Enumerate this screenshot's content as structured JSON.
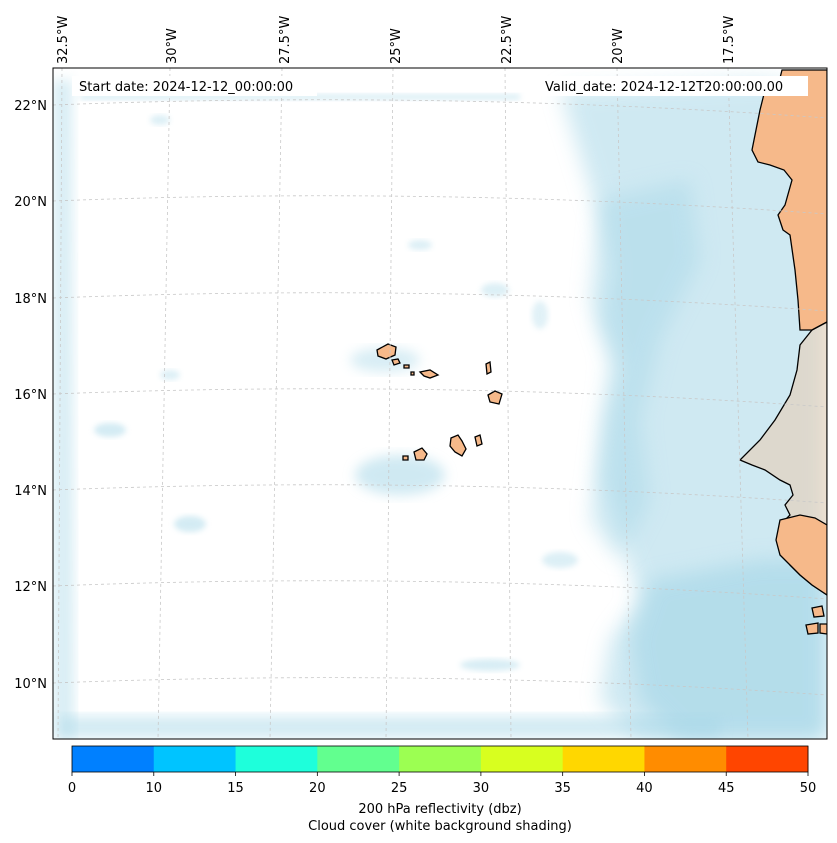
{
  "map": {
    "start_date": "Start date: 2024-12-12_00:00:00",
    "valid_date": "Valid_date: 2024-12-12T20:00:00.00",
    "lon_labels": [
      "32.5°W",
      "30°W",
      "27.5°W",
      "25°W",
      "22.5°W",
      "20°W",
      "17.5°W"
    ],
    "lat_labels": [
      "22°N",
      "20°N",
      "18°N",
      "16°N",
      "14°N",
      "12°N",
      "10°N"
    ],
    "colors": {
      "land": "#f6b98a",
      "cloud": "#a9d8e8",
      "coast": "#000000",
      "grid": "#c8c8c8"
    }
  },
  "colorbar": {
    "ticks": [
      "0",
      "10",
      "15",
      "20",
      "25",
      "30",
      "35",
      "40",
      "45",
      "50"
    ],
    "colors": [
      "#0080ff",
      "#00c4ff",
      "#1effdb",
      "#62ff8f",
      "#9cff52",
      "#d8ff1f",
      "#ffd700",
      "#ff8c00",
      "#ff4500"
    ],
    "label_line1": "200 hPa reflectivity (dbz)",
    "label_line2": "Cloud cover (white background shading)"
  }
}
